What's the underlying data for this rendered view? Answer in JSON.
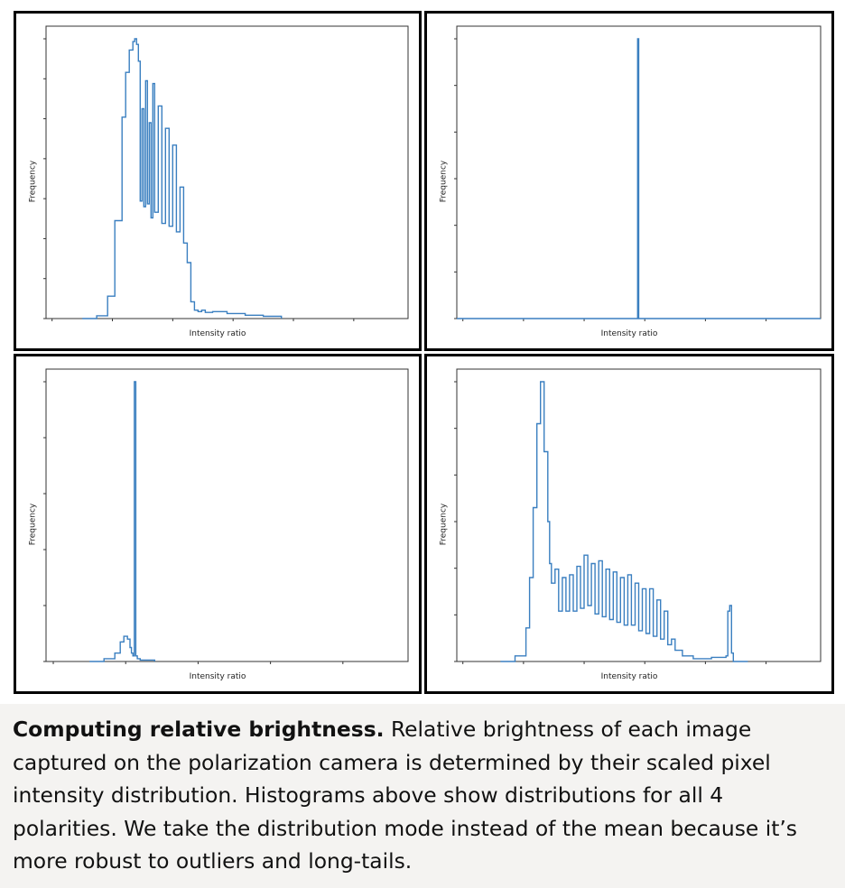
{
  "caption": {
    "title": "Computing relative brightness.",
    "body": " Relative brightness of each image captured on the polarization camera is determined by their scaled pixel intensity distribution. Histograms above show distributions for all 4 polarities. We take the distribution mode instead of the mean because it’s more robust to outliers and long-tails."
  },
  "colors": {
    "line": "#3a7fc0",
    "fill": "#8fb8dd",
    "frame": "#000000"
  },
  "chart_data": [
    {
      "type": "line",
      "xlabel": "Intensity ratio",
      "ylabel": "Frequency",
      "xlim": [
        0,
        1
      ],
      "ylim": [
        0,
        1
      ],
      "xtick_count": 6,
      "ytick_count": 8,
      "tick_labels": "none",
      "x": [
        0.1,
        0.14,
        0.17,
        0.19,
        0.21,
        0.22,
        0.23,
        0.24,
        0.245,
        0.25,
        0.255,
        0.26,
        0.265,
        0.27,
        0.275,
        0.28,
        0.285,
        0.29,
        0.295,
        0.3,
        0.31,
        0.32,
        0.33,
        0.34,
        0.35,
        0.36,
        0.37,
        0.38,
        0.39,
        0.4,
        0.41,
        0.42,
        0.43,
        0.44,
        0.46,
        0.5,
        0.55,
        0.6,
        0.65
      ],
      "values": [
        0.0,
        0.01,
        0.08,
        0.35,
        0.72,
        0.88,
        0.96,
        0.99,
        1.0,
        0.98,
        0.92,
        0.42,
        0.75,
        0.4,
        0.85,
        0.41,
        0.7,
        0.36,
        0.84,
        0.38,
        0.76,
        0.34,
        0.68,
        0.33,
        0.62,
        0.31,
        0.47,
        0.27,
        0.2,
        0.06,
        0.03,
        0.025,
        0.03,
        0.022,
        0.025,
        0.018,
        0.012,
        0.008,
        0.0
      ]
    },
    {
      "type": "line",
      "xlabel": "Intensity ratio",
      "ylabel": "Frequency",
      "xlim": [
        0,
        1
      ],
      "ylim": [
        0,
        1
      ],
      "xtick_count": 6,
      "ytick_count": 7,
      "tick_labels": "none",
      "x": [
        0.0,
        0.496,
        0.497,
        0.499,
        0.5,
        1.0
      ],
      "values": [
        0.0,
        0.0,
        1.0,
        1.0,
        0.0,
        0.0
      ]
    },
    {
      "type": "line",
      "xlabel": "Intensity ratio",
      "ylabel": "Frequency",
      "xlim": [
        0,
        1
      ],
      "ylim": [
        0,
        1
      ],
      "xtick_count": 5,
      "ytick_count": 6,
      "tick_labels": "none",
      "x": [
        0.12,
        0.16,
        0.19,
        0.205,
        0.215,
        0.225,
        0.232,
        0.236,
        0.24,
        0.243,
        0.244,
        0.246,
        0.248,
        0.252,
        0.26,
        0.3
      ],
      "values": [
        0.0,
        0.01,
        0.03,
        0.07,
        0.09,
        0.08,
        0.05,
        0.03,
        0.02,
        0.02,
        1.0,
        1.0,
        0.02,
        0.01,
        0.005,
        0.0
      ]
    },
    {
      "type": "line",
      "xlabel": "Intensity ratio",
      "ylabel": "Frequency",
      "xlim": [
        0,
        1
      ],
      "ylim": [
        0,
        1
      ],
      "xtick_count": 6,
      "ytick_count": 7,
      "tick_labels": "none",
      "x": [
        0.12,
        0.16,
        0.19,
        0.2,
        0.21,
        0.22,
        0.23,
        0.24,
        0.25,
        0.255,
        0.26,
        0.27,
        0.28,
        0.29,
        0.3,
        0.31,
        0.32,
        0.33,
        0.34,
        0.35,
        0.36,
        0.37,
        0.38,
        0.39,
        0.4,
        0.41,
        0.42,
        0.43,
        0.44,
        0.45,
        0.46,
        0.47,
        0.48,
        0.49,
        0.5,
        0.51,
        0.52,
        0.53,
        0.54,
        0.55,
        0.56,
        0.57,
        0.58,
        0.59,
        0.6,
        0.62,
        0.65,
        0.7,
        0.74,
        0.745,
        0.75,
        0.755,
        0.76,
        0.77,
        0.8
      ],
      "values": [
        0.0,
        0.02,
        0.12,
        0.3,
        0.55,
        0.85,
        1.0,
        0.75,
        0.5,
        0.35,
        0.28,
        0.33,
        0.18,
        0.3,
        0.18,
        0.31,
        0.18,
        0.34,
        0.19,
        0.38,
        0.2,
        0.35,
        0.17,
        0.36,
        0.16,
        0.33,
        0.15,
        0.32,
        0.14,
        0.3,
        0.13,
        0.31,
        0.13,
        0.28,
        0.11,
        0.26,
        0.1,
        0.26,
        0.09,
        0.22,
        0.08,
        0.18,
        0.06,
        0.08,
        0.04,
        0.02,
        0.01,
        0.015,
        0.02,
        0.18,
        0.2,
        0.03,
        0.0,
        0.0,
        0.0
      ]
    }
  ]
}
